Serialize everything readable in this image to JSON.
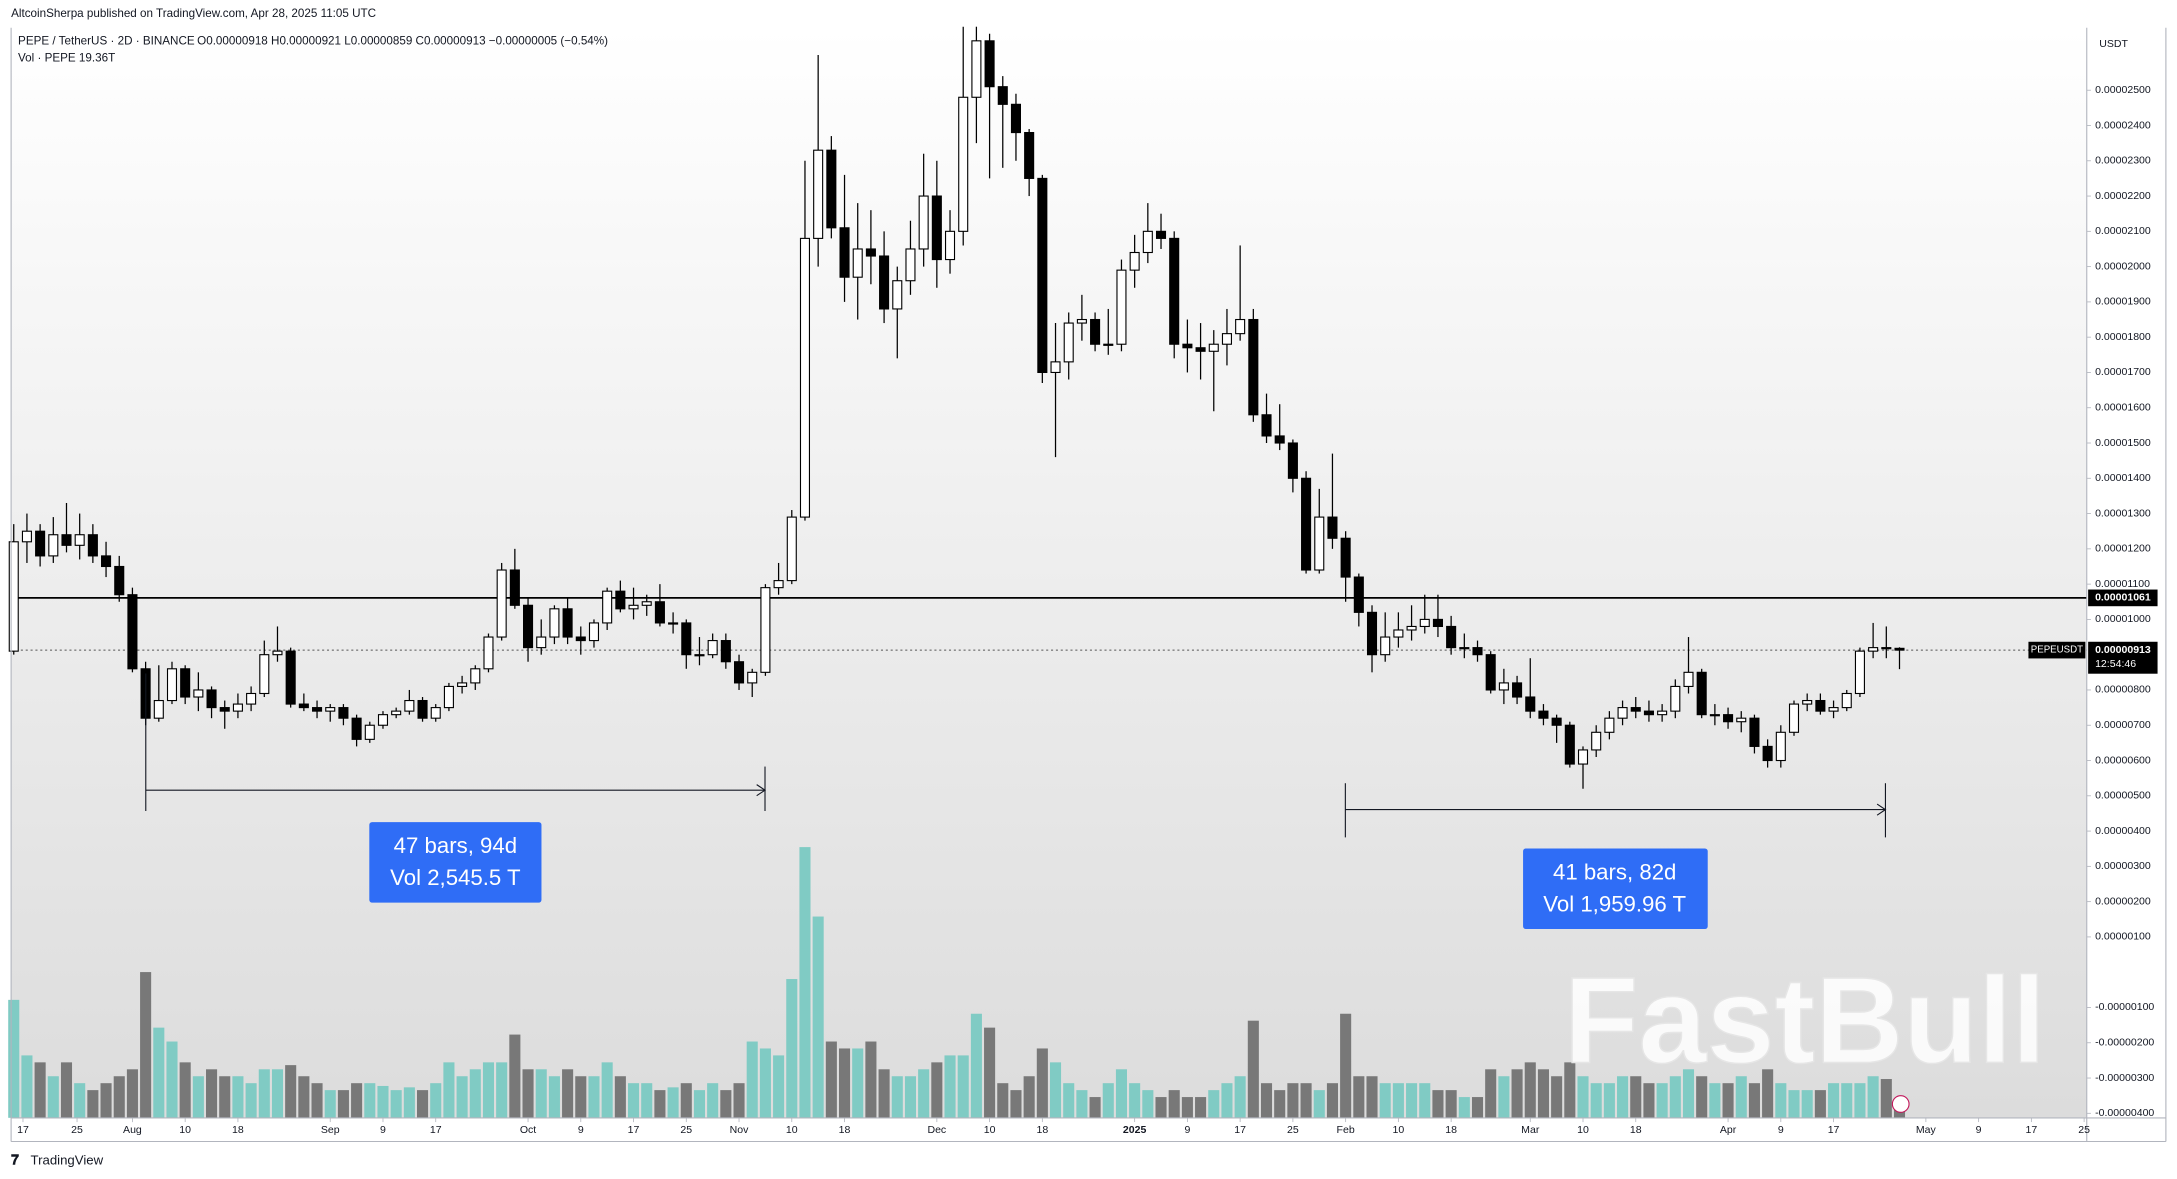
{
  "chart_data": {
    "type": "candlestick",
    "header": {
      "publisher": "AltcoinSherpa published on TradingView.com, Apr 28, 2025 11:05 UTC",
      "symbol": "PEPE / TetherUS · 2D · BINANCE",
      "ohlc_legend": "O0.00000918 H0.00000921 L0.00000859 C0.00000913 −0.00000005 (−0.54%)",
      "volume_legend": "Vol · PEPE 19.36T"
    },
    "axis_unit": "USDT",
    "footer": "TradingView",
    "watermark": "FastBull",
    "up_color": "#ffffff",
    "down_color": "#000000",
    "border_color": "#000000",
    "volume_up_color": "#80cbc4",
    "volume_down_color": "#787878",
    "open": [
      9.1e-06,
      1.22e-05,
      1.25e-05,
      1.18e-05,
      1.24e-05,
      1.21e-05,
      1.24e-05,
      1.18e-05,
      1.15e-05,
      1.07e-05,
      8.6e-06,
      7.2e-06,
      7.7e-06,
      8.6e-06,
      7.8e-06,
      8e-06,
      7.5e-06,
      7.4e-06,
      7.6e-06,
      7.9e-06,
      9e-06,
      9.1e-06,
      7.6e-06,
      7.5e-06,
      7.4e-06,
      7.5e-06,
      7.2e-06,
      6.6e-06,
      7e-06,
      7.3e-06,
      7.4e-06,
      7.7e-06,
      7.2e-06,
      7.5e-06,
      8.1e-06,
      8.2e-06,
      8.6e-06,
      9.5e-06,
      1.14e-05,
      1.04e-05,
      9.2e-06,
      9.5e-06,
      1.03e-05,
      9.5e-06,
      9.4e-06,
      9.9e-06,
      1.08e-05,
      1.03e-05,
      1.04e-05,
      1.05e-05,
      9.9e-06,
      9.9e-06,
      9e-06,
      9e-06,
      9.4e-06,
      8.8e-06,
      8.2e-06,
      8.5e-06,
      1.09e-05,
      1.11e-05,
      1.29e-05,
      2.08e-05,
      2.33e-05,
      2.11e-05,
      1.97e-05,
      2.05e-05,
      2.03e-05,
      1.88e-05,
      1.96e-05,
      2.05e-05,
      2.2e-05,
      2.02e-05,
      2.1e-05,
      2.48e-05,
      2.64e-05,
      2.51e-05,
      2.46e-05,
      2.38e-05,
      2.25e-05,
      1.7e-05,
      1.73e-05,
      1.84e-05,
      1.85e-05,
      1.78e-05,
      1.78e-05,
      1.99e-05,
      2.04e-05,
      2.1e-05,
      2.08e-05,
      1.78e-05,
      1.77e-05,
      1.76e-05,
      1.78e-05,
      1.81e-05,
      1.85e-05,
      1.58e-05,
      1.52e-05,
      1.5e-05,
      1.4e-05,
      1.14e-05,
      1.29e-05,
      1.23e-05,
      1.12e-05,
      1.02e-05,
      9e-06,
      9.5e-06,
      9.7e-06,
      9.8e-06,
      1e-05,
      9.8e-06,
      9.2e-06,
      9.2e-06,
      9e-06,
      8e-06,
      8.2e-06,
      7.8e-06,
      7.4e-06,
      7.2e-06,
      7e-06,
      5.9e-06,
      6.3e-06,
      6.8e-06,
      7.2e-06,
      7.5e-06,
      7.4e-06,
      7.3e-06,
      7.4e-06,
      8.1e-06,
      8.5e-06,
      7.3e-06,
      7.3e-06,
      7.1e-06,
      7.2e-06,
      6.4e-06,
      6e-06,
      6.8e-06,
      7.6e-06,
      7.7e-06,
      7.4e-06,
      7.5e-06,
      7.9e-06,
      9.1e-06,
      9.2e-06,
      9.18e-06
    ],
    "high": [
      1.27e-05,
      1.3e-05,
      1.27e-05,
      1.29e-05,
      1.33e-05,
      1.3e-05,
      1.27e-05,
      1.22e-05,
      1.18e-05,
      1.09e-05,
      8.8e-06,
      8.7e-06,
      8.8e-06,
      8.7e-06,
      8.5e-06,
      8.1e-06,
      7.7e-06,
      7.9e-06,
      8.1e-06,
      9.4e-06,
      9.8e-06,
      9.2e-06,
      7.9e-06,
      7.7e-06,
      7.6e-06,
      7.6e-06,
      7.3e-06,
      7.1e-06,
      7.4e-06,
      7.5e-06,
      8e-06,
      7.8e-06,
      7.6e-06,
      8.2e-06,
      8.4e-06,
      8.7e-06,
      9.6e-06,
      1.16e-05,
      1.2e-05,
      1.06e-05,
      1e-05,
      1.04e-05,
      1.06e-05,
      9.8e-06,
      1e-05,
      1.09e-05,
      1.11e-05,
      1.09e-05,
      1.07e-05,
      1.1e-05,
      1.02e-05,
      1e-05,
      9.5e-06,
      9.6e-06,
      9.6e-06,
      9e-06,
      8.6e-06,
      1.1e-05,
      1.16e-05,
      1.31e-05,
      2.3e-05,
      2.6e-05,
      2.37e-05,
      2.26e-05,
      2.18e-05,
      2.16e-05,
      2.1e-05,
      2e-05,
      2.13e-05,
      2.32e-05,
      2.3e-05,
      2.16e-05,
      2.68e-05,
      2.68e-05,
      2.66e-05,
      2.54e-05,
      2.49e-05,
      2.39e-05,
      2.26e-05,
      1.84e-05,
      1.87e-05,
      1.92e-05,
      1.87e-05,
      1.88e-05,
      2.02e-05,
      2.09e-05,
      2.18e-05,
      2.15e-05,
      2.1e-05,
      1.85e-05,
      1.84e-05,
      1.82e-05,
      1.88e-05,
      2.06e-05,
      1.88e-05,
      1.64e-05,
      1.61e-05,
      1.51e-05,
      1.42e-05,
      1.37e-05,
      1.47e-05,
      1.25e-05,
      1.13e-05,
      1.04e-05,
      1.02e-05,
      1.02e-05,
      1.04e-05,
      1.07e-05,
      1.07e-05,
      1.01e-05,
      9.6e-06,
      9.4e-06,
      9.1e-06,
      8.6e-06,
      8.4e-06,
      8.9e-06,
      7.6e-06,
      7.3e-06,
      7.1e-06,
      6.4e-06,
      7e-06,
      7.4e-06,
      7.7e-06,
      7.8e-06,
      7.7e-06,
      7.6e-06,
      8.3e-06,
      9.5e-06,
      8.6e-06,
      7.6e-06,
      7.5e-06,
      7.4e-06,
      7.3e-06,
      6.6e-06,
      7e-06,
      7.7e-06,
      7.9e-06,
      7.9e-06,
      7.7e-06,
      8e-06,
      9.2e-06,
      9.9e-06,
      9.8e-06,
      9.21e-06
    ],
    "low": [
      9e-06,
      1.16e-05,
      1.15e-05,
      1.16e-05,
      1.19e-05,
      1.17e-05,
      1.16e-05,
      1.12e-05,
      1.05e-05,
      8.5e-06,
      7e-06,
      7.1e-06,
      7.6e-06,
      7.6e-06,
      7.4e-06,
      7.2e-06,
      6.9e-06,
      7.2e-06,
      7.4e-06,
      7.8e-06,
      8.8e-06,
      7.5e-06,
      7.4e-06,
      7.2e-06,
      7.1e-06,
      7e-06,
      6.4e-06,
      6.5e-06,
      6.9e-06,
      7.2e-06,
      7.3e-06,
      7.1e-06,
      7.1e-06,
      7.4e-06,
      7.9e-06,
      8e-06,
      8.5e-06,
      9.4e-06,
      1.03e-05,
      8.8e-06,
      9e-06,
      9.3e-06,
      9.3e-06,
      9e-06,
      9.2e-06,
      9.7e-06,
      1.02e-05,
      1e-05,
      1.01e-05,
      9.8e-06,
      9.6e-06,
      8.6e-06,
      8.7e-06,
      8.9e-06,
      8.6e-06,
      8e-06,
      7.8e-06,
      8.4e-06,
      1.07e-05,
      1.1e-05,
      1.28e-05,
      2e-05,
      2.08e-05,
      1.9e-05,
      1.85e-05,
      1.95e-05,
      1.84e-05,
      1.74e-05,
      1.92e-05,
      2e-05,
      1.94e-05,
      1.98e-05,
      2.06e-05,
      2.35e-05,
      2.25e-05,
      2.28e-05,
      2.3e-05,
      2.2e-05,
      1.67e-05,
      1.46e-05,
      1.68e-05,
      1.79e-05,
      1.76e-05,
      1.75e-05,
      1.76e-05,
      1.94e-05,
      2.01e-05,
      2.05e-05,
      1.74e-05,
      1.7e-05,
      1.68e-05,
      1.59e-05,
      1.72e-05,
      1.79e-05,
      1.56e-05,
      1.5e-05,
      1.48e-05,
      1.36e-05,
      1.13e-05,
      1.13e-05,
      1.2e-05,
      1.05e-05,
      9.8e-06,
      8.5e-06,
      8.8e-06,
      9.2e-06,
      9.4e-06,
      9.6e-06,
      9.5e-06,
      9e-06,
      8.9e-06,
      8.8e-06,
      7.9e-06,
      7.6e-06,
      7.6e-06,
      7.2e-06,
      7e-06,
      6.5e-06,
      5.8e-06,
      5.2e-06,
      6.1e-06,
      6.6e-06,
      7e-06,
      7.2e-06,
      7.1e-06,
      7.1e-06,
      7.2e-06,
      7.9e-06,
      7.2e-06,
      7e-06,
      6.9e-06,
      6.8e-06,
      6.2e-06,
      5.8e-06,
      5.8e-06,
      6.7e-06,
      7.4e-06,
      7.3e-06,
      7.2e-06,
      7.4e-06,
      7.8e-06,
      8.9e-06,
      8.9e-06,
      8.59e-06
    ],
    "close": [
      1.22e-05,
      1.25e-05,
      1.18e-05,
      1.24e-05,
      1.21e-05,
      1.24e-05,
      1.18e-05,
      1.15e-05,
      1.07e-05,
      8.6e-06,
      7.2e-06,
      7.7e-06,
      8.6e-06,
      7.8e-06,
      8e-06,
      7.5e-06,
      7.4e-06,
      7.6e-06,
      7.9e-06,
      9e-06,
      9.1e-06,
      7.6e-06,
      7.5e-06,
      7.4e-06,
      7.5e-06,
      7.2e-06,
      6.6e-06,
      7e-06,
      7.3e-06,
      7.4e-06,
      7.7e-06,
      7.2e-06,
      7.5e-06,
      8.1e-06,
      8.2e-06,
      8.6e-06,
      9.5e-06,
      1.14e-05,
      1.04e-05,
      9.2e-06,
      9.5e-06,
      1.03e-05,
      9.5e-06,
      9.4e-06,
      9.9e-06,
      1.08e-05,
      1.03e-05,
      1.04e-05,
      1.05e-05,
      9.9e-06,
      9.9e-06,
      9e-06,
      9e-06,
      9.4e-06,
      8.8e-06,
      8.2e-06,
      8.5e-06,
      1.09e-05,
      1.11e-05,
      1.29e-05,
      2.08e-05,
      2.33e-05,
      2.11e-05,
      1.97e-05,
      2.05e-05,
      2.03e-05,
      1.88e-05,
      1.96e-05,
      2.05e-05,
      2.2e-05,
      2.02e-05,
      2.1e-05,
      2.48e-05,
      2.64e-05,
      2.51e-05,
      2.46e-05,
      2.38e-05,
      2.25e-05,
      1.7e-05,
      1.73e-05,
      1.84e-05,
      1.85e-05,
      1.78e-05,
      1.78e-05,
      1.99e-05,
      2.04e-05,
      2.1e-05,
      2.08e-05,
      1.78e-05,
      1.77e-05,
      1.76e-05,
      1.78e-05,
      1.81e-05,
      1.85e-05,
      1.58e-05,
      1.52e-05,
      1.5e-05,
      1.4e-05,
      1.14e-05,
      1.29e-05,
      1.23e-05,
      1.12e-05,
      1.02e-05,
      9e-06,
      9.5e-06,
      9.7e-06,
      9.8e-06,
      1e-05,
      9.8e-06,
      9.2e-06,
      9.2e-06,
      9e-06,
      8e-06,
      8.2e-06,
      7.8e-06,
      7.4e-06,
      7.2e-06,
      7e-06,
      5.9e-06,
      6.3e-06,
      6.8e-06,
      7.2e-06,
      7.5e-06,
      7.4e-06,
      7.3e-06,
      7.4e-06,
      8.1e-06,
      8.5e-06,
      7.3e-06,
      7.3e-06,
      7.1e-06,
      7.2e-06,
      6.4e-06,
      6e-06,
      6.8e-06,
      7.6e-06,
      7.7e-06,
      7.4e-06,
      7.5e-06,
      7.9e-06,
      9.1e-06,
      9.2e-06,
      9.18e-06,
      9.13e-06
    ],
    "volume": [
      127500000000000.0,
      67500000000000.0,
      60000000000000.0,
      45000000000000.0,
      60000000000000.0,
      37500000000000.0,
      30000000000000.0,
      37500000000000.0,
      45000000000000.0,
      52500000000000.0,
      157500000000000.0,
      97500000000000.0,
      82500000000000.0,
      60000000000000.0,
      45000000000000.0,
      52500000000000.0,
      45000000000000.0,
      45000000000000.0,
      37500000000000.0,
      52500000000000.0,
      52500000000000.0,
      57000000000000.0,
      45000000000000.0,
      37500000000000.0,
      30000000000000.0,
      30000000000000.0,
      37500000000000.0,
      37500000000000.0,
      34500000000000.0,
      30000000000000.0,
      33000000000000.0,
      30000000000000.0,
      37500000000000.0,
      60000000000000.0,
      45000000000000.0,
      52500000000000.0,
      60000000000000.0,
      60000000000000.0,
      90000000000000.0,
      52500000000000.0,
      52500000000000.0,
      45000000000000.0,
      52500000000000.0,
      45000000000000.0,
      45000000000000.0,
      60000000000000.0,
      45000000000000.0,
      37500000000000.0,
      37500000000000.0,
      30000000000000.0,
      33000000000000.0,
      37500000000000.0,
      30000000000000.0,
      37500000000000.0,
      30000000000000.0,
      37500000000000.0,
      82500000000000.0,
      75000000000000.0,
      67500000000000.0,
      150000000000000.0,
      292500000000000.0,
      217500000000000.0,
      82500000000000.0,
      75000000000000.0,
      75000000000000.0,
      82500000000000.0,
      52500000000000.0,
      45000000000000.0,
      45000000000000.0,
      52500000000000.0,
      60000000000000.0,
      67500000000000.0,
      67500000000000.0,
      112500000000000.0,
      97500000000000.0,
      37500000000000.0,
      30000000000000.0,
      45000000000000.0,
      75000000000000.0,
      60000000000000.0,
      37500000000000.0,
      30000000000000.0,
      22500000000000.0,
      37500000000000.0,
      52500000000000.0,
      37500000000000.0,
      30000000000000.0,
      22500000000000.0,
      30000000000000.0,
      22500000000000.0,
      22500000000000.0,
      30000000000000.0,
      37500000000000.0,
      45000000000000.0,
      105000000000000.0,
      37500000000000.0,
      30000000000000.0,
      37500000000000.0,
      37500000000000.0,
      30000000000000.0,
      37500000000000.0,
      112500000000000.0,
      45000000000000.0,
      45000000000000.0,
      37500000000000.0,
      37500000000000.0,
      37500000000000.0,
      37500000000000.0,
      30000000000000.0,
      30000000000000.0,
      22500000000000.0,
      22500000000000.0,
      52500000000000.0,
      45000000000000.0,
      52500000000000.0,
      60000000000000.0,
      52500000000000.0,
      45000000000000.0,
      60000000000000.0,
      45000000000000.0,
      37500000000000.0,
      37500000000000.0,
      45000000000000.0,
      45000000000000.0,
      37500000000000.0,
      37500000000000.0,
      45000000000000.0,
      52500000000000.0,
      45000000000000.0,
      37500000000000.0,
      37500000000000.0,
      45000000000000.0,
      37500000000000.0,
      52500000000000.0,
      37500000000000.0,
      30000000000000.0,
      30000000000000.0,
      30000000000000.0,
      37500000000000.0,
      37500000000000.0,
      37500000000000.0,
      45000000000000.0,
      42000000000000.0,
      19360000000000.0
    ],
    "xlim": [
      -0.2,
      157.2
    ],
    "ylim": [
      -4.13e-06,
      2.677e-05
    ],
    "vol_ylim": [
      0,
      1177500000000000.0
    ],
    "xticks": [
      {
        "value": 0.7,
        "label": "17"
      },
      {
        "value": 4.8,
        "label": "25"
      },
      {
        "value": 9,
        "label": "Aug"
      },
      {
        "value": 13,
        "label": "10"
      },
      {
        "value": 17,
        "label": "18"
      },
      {
        "value": 24,
        "label": "Sep"
      },
      {
        "value": 28,
        "label": "9"
      },
      {
        "value": 32,
        "label": "17"
      },
      {
        "value": 39,
        "label": "Oct"
      },
      {
        "value": 43,
        "label": "9"
      },
      {
        "value": 47,
        "label": "17"
      },
      {
        "value": 51,
        "label": "25"
      },
      {
        "value": 55,
        "label": "Nov"
      },
      {
        "value": 59,
        "label": "10"
      },
      {
        "value": 63,
        "label": "18"
      },
      {
        "value": 70,
        "label": "Dec"
      },
      {
        "value": 74,
        "label": "10"
      },
      {
        "value": 78,
        "label": "18"
      },
      {
        "value": 85,
        "label": "2025"
      },
      {
        "value": 89,
        "label": "9"
      },
      {
        "value": 93,
        "label": "17"
      },
      {
        "value": 97,
        "label": "25"
      },
      {
        "value": 101,
        "label": "Feb"
      },
      {
        "value": 105,
        "label": "10"
      },
      {
        "value": 109,
        "label": "18"
      },
      {
        "value": 115,
        "label": "Mar"
      },
      {
        "value": 119,
        "label": "10"
      },
      {
        "value": 123,
        "label": "18"
      },
      {
        "value": 130,
        "label": "Apr"
      },
      {
        "value": 134,
        "label": "9"
      },
      {
        "value": 138,
        "label": "17"
      },
      {
        "value": 145,
        "label": "May"
      },
      {
        "value": 149,
        "label": "9"
      },
      {
        "value": 153,
        "label": "17"
      },
      {
        "value": 157,
        "label": "25"
      }
    ],
    "yticks": [
      {
        "value": 2.5e-05,
        "label": "0.00002500"
      },
      {
        "value": 2.4e-05,
        "label": "0.00002400"
      },
      {
        "value": 2.3e-05,
        "label": "0.00002300"
      },
      {
        "value": 2.2e-05,
        "label": "0.00002200"
      },
      {
        "value": 2.1e-05,
        "label": "0.00002100"
      },
      {
        "value": 2e-05,
        "label": "0.00002000"
      },
      {
        "value": 1.9e-05,
        "label": "0.00001900"
      },
      {
        "value": 1.8e-05,
        "label": "0.00001800"
      },
      {
        "value": 1.7e-05,
        "label": "0.00001700"
      },
      {
        "value": 1.6e-05,
        "label": "0.00001600"
      },
      {
        "value": 1.5e-05,
        "label": "0.00001500"
      },
      {
        "value": 1.4e-05,
        "label": "0.00001400"
      },
      {
        "value": 1.3e-05,
        "label": "0.00001300"
      },
      {
        "value": 1.2e-05,
        "label": "0.00001200"
      },
      {
        "value": 1.1e-05,
        "label": "0.00001100"
      },
      {
        "value": 1e-05,
        "label": "0.00001000"
      },
      {
        "value": 8e-06,
        "label": "0.00000800"
      },
      {
        "value": 7e-06,
        "label": "0.00000700"
      },
      {
        "value": 6e-06,
        "label": "0.00000600"
      },
      {
        "value": 5e-06,
        "label": "0.00000500"
      },
      {
        "value": 4e-06,
        "label": "0.00000400"
      },
      {
        "value": 3e-06,
        "label": "0.00000300"
      },
      {
        "value": 2e-06,
        "label": "0.00000200"
      },
      {
        "value": 1e-06,
        "label": "0.00000100"
      },
      {
        "value": -1e-06,
        "label": "-0.00000100"
      },
      {
        "value": -2e-06,
        "label": "-0.00000200"
      },
      {
        "value": -3e-06,
        "label": "-0.00000300"
      },
      {
        "value": -4e-06,
        "label": "-0.00000400"
      }
    ],
    "grid": false,
    "hline": {
      "value": 1.061e-05,
      "label": "0.00001061"
    },
    "price_line": {
      "value": 9.13e-06,
      "label": "0.00000913",
      "symbol": "PEPEUSDT",
      "countdown": "12:54:46"
    },
    "measures": [
      {
        "line1": "47 bars, 94d",
        "line2": "Vol 2,545.5 T"
      },
      {
        "line1": "41 bars, 82d",
        "line2": "Vol 1,959.96 T"
      }
    ]
  }
}
